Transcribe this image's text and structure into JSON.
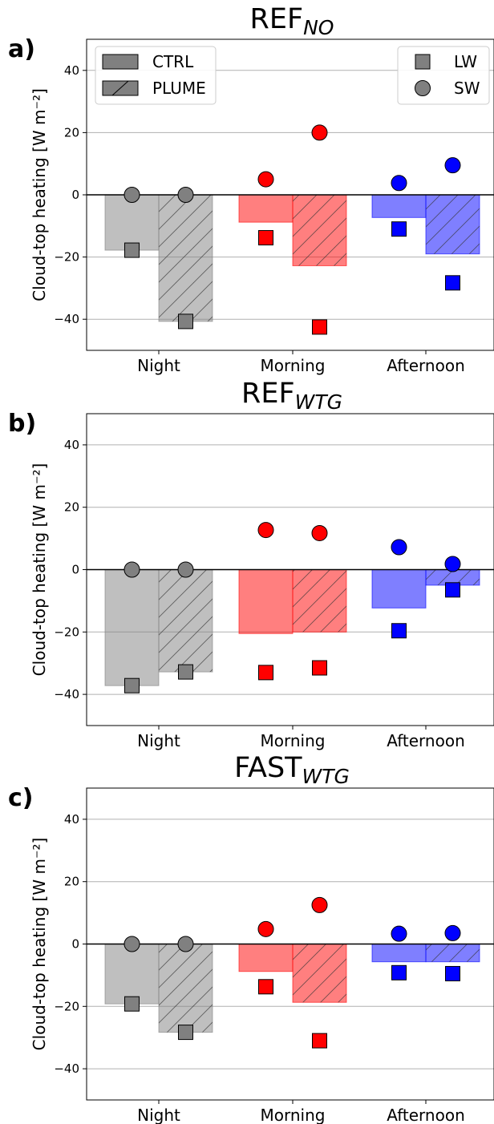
{
  "legend": {
    "ctrl_label": "CTRL",
    "plume_label": "PLUME",
    "lw_label": "LW",
    "sw_label": "SW"
  },
  "colors": {
    "Night": "#808080",
    "Morning": "#ff0000",
    "Afternoon": "#0000ff",
    "bar_alpha": 0.5,
    "grid": "#b0b0b0"
  },
  "chart_data": [
    {
      "type": "bar",
      "panel_label": "a)",
      "title_main": "REF",
      "title_sub": "NO",
      "ylabel": "Cloud-top heating [W m⁻²]",
      "ylim": [
        -50,
        50
      ],
      "yticks": [
        -40,
        -20,
        0,
        20,
        40
      ],
      "grid": true,
      "legend_position": "top",
      "categories": [
        "Night",
        "Morning",
        "Afternoon"
      ],
      "series": [
        {
          "name": "CTRL",
          "values": [
            -17.8,
            -8.8,
            -7.3
          ],
          "lw": [
            -17.8,
            -13.8,
            -11.0
          ],
          "sw": [
            0,
            5.0,
            3.8
          ]
        },
        {
          "name": "PLUME",
          "values": [
            -40.7,
            -22.8,
            -19.0
          ],
          "lw": [
            -40.7,
            -42.5,
            -28.3
          ],
          "sw": [
            0,
            20.0,
            9.5
          ]
        }
      ]
    },
    {
      "type": "bar",
      "panel_label": "b)",
      "title_main": "REF",
      "title_sub": "WTG",
      "ylabel": "Cloud-top heating [W m⁻²]",
      "ylim": [
        -50,
        50
      ],
      "yticks": [
        -40,
        -20,
        0,
        20,
        40
      ],
      "grid": true,
      "categories": [
        "Night",
        "Morning",
        "Afternoon"
      ],
      "series": [
        {
          "name": "CTRL",
          "values": [
            -37.2,
            -20.5,
            -12.3
          ],
          "lw": [
            -37.2,
            -33.0,
            -19.6
          ],
          "sw": [
            0,
            12.7,
            7.2
          ]
        },
        {
          "name": "PLUME",
          "values": [
            -32.8,
            -20.0,
            -5.0
          ],
          "lw": [
            -32.8,
            -31.5,
            -6.5
          ],
          "sw": [
            0,
            11.7,
            1.8
          ]
        }
      ]
    },
    {
      "type": "bar",
      "panel_label": "c)",
      "title_main": "FAST",
      "title_sub": "WTG",
      "ylabel": "Cloud-top heating [W m⁻²]",
      "ylim": [
        -50,
        50
      ],
      "yticks": [
        -40,
        -20,
        0,
        20,
        40
      ],
      "grid": true,
      "categories": [
        "Night",
        "Morning",
        "Afternoon"
      ],
      "series": [
        {
          "name": "CTRL",
          "values": [
            -19.2,
            -8.8,
            -5.7
          ],
          "lw": [
            -19.2,
            -13.7,
            -9.2
          ],
          "sw": [
            0,
            4.8,
            3.3
          ]
        },
        {
          "name": "PLUME",
          "values": [
            -28.3,
            -18.7,
            -5.7
          ],
          "lw": [
            -28.3,
            -31.0,
            -9.5
          ],
          "sw": [
            0,
            12.5,
            3.5
          ]
        }
      ]
    }
  ]
}
